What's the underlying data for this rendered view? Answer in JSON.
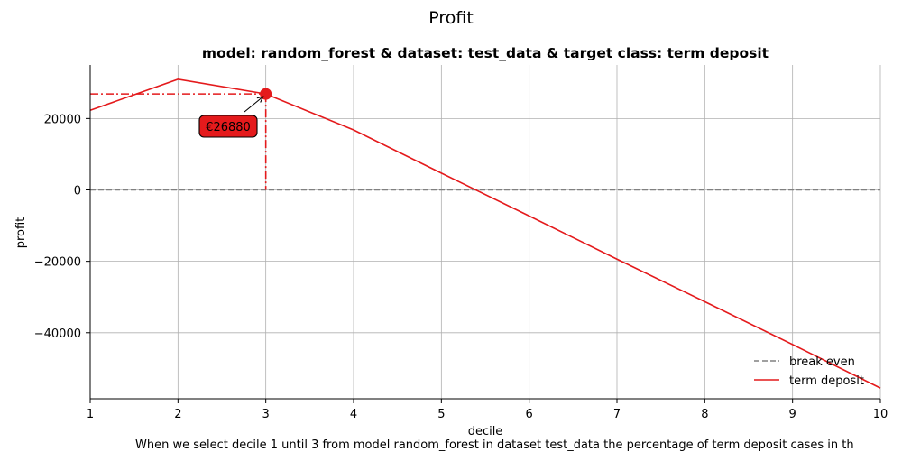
{
  "chart_data": {
    "type": "line",
    "suptitle": "Profit",
    "title": "model: random_forest & dataset: test_data & target class: term deposit",
    "xlabel": "decile",
    "ylabel": "profit",
    "xlim": [
      1,
      10
    ],
    "ylim": [
      -58500,
      35000
    ],
    "x_ticks": [
      1,
      2,
      3,
      4,
      5,
      6,
      7,
      8,
      9,
      10
    ],
    "y_ticks": [
      -40000,
      -20000,
      0,
      20000
    ],
    "y_tick_labels": [
      "−40000",
      "−20000",
      "0",
      "20000"
    ],
    "grid": true,
    "legend_position": "bottom-right",
    "series": [
      {
        "name": "break even",
        "style": "dashed",
        "color": "#808080",
        "x": [
          1,
          2,
          3,
          4,
          5,
          6,
          7,
          8,
          9,
          10
        ],
        "values": [
          0,
          0,
          0,
          0,
          0,
          0,
          0,
          0,
          0,
          0
        ]
      },
      {
        "name": "term deposit",
        "style": "solid",
        "color": "#e41a1c",
        "x": [
          1,
          2,
          3,
          4,
          5,
          6,
          7,
          8,
          9,
          10
        ],
        "values": [
          22300,
          31000,
          26880,
          16800,
          4700,
          -7300,
          -19400,
          -31300,
          -43300,
          -55500
        ]
      }
    ],
    "highlight": {
      "x": 3,
      "y": 26880,
      "label": "€26880",
      "color": "#e41a1c"
    },
    "caption": "When we select decile 1 until 3 from model random_forest in dataset test_data the percentage of term deposit cases in th"
  }
}
